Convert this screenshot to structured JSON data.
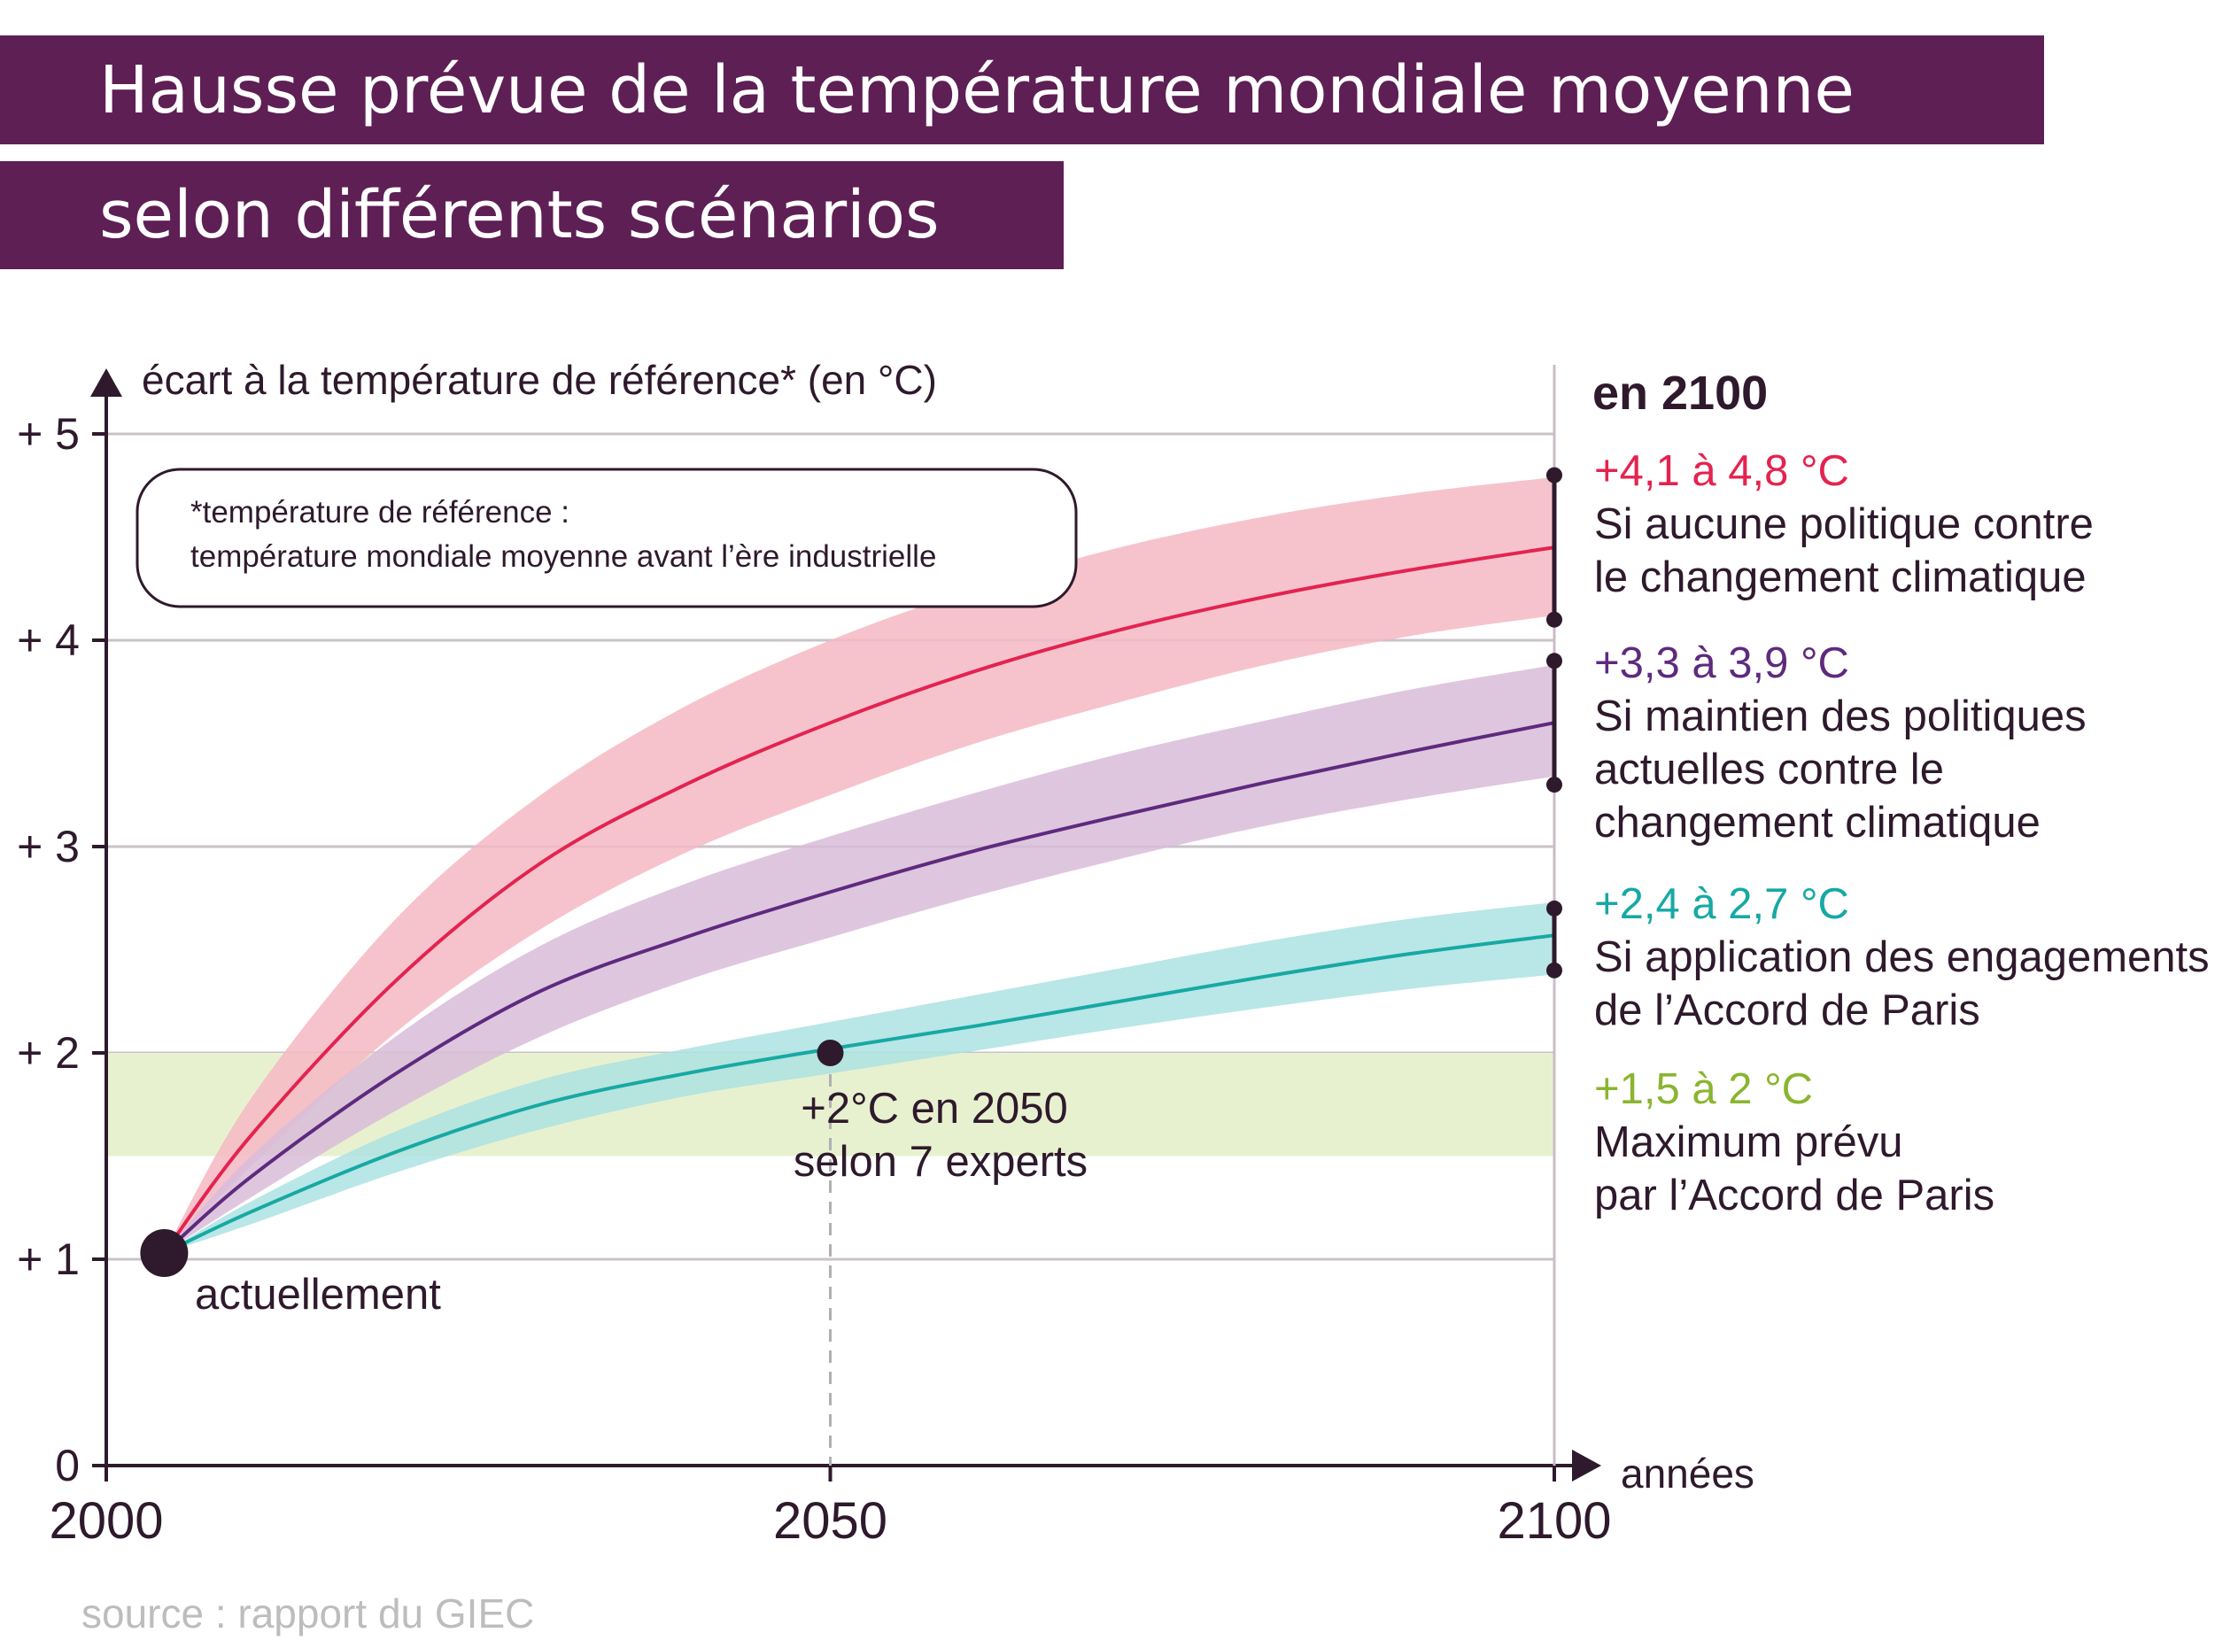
{
  "title": {
    "line1": "Hausse prévue de la température mondiale moyenne",
    "line2": "selon différents scénarios"
  },
  "colors": {
    "title_bg": "#5e1f55",
    "high": "#e4234f",
    "high_band": "#f4b8c4",
    "mid": "#5e2a7e",
    "mid_band": "#d9bcd9",
    "low": "#17a9a3",
    "low_band": "#ade2e2",
    "paris_band": "#e8f1cf",
    "paris_text": "#8ab52f"
  },
  "chart_data": {
    "type": "line",
    "ylabel": "écart à la température de référence* (en °C)",
    "xlabel": "années",
    "xlim": [
      2000,
      2100
    ],
    "ylim": [
      0,
      5
    ],
    "x_ticks": [
      "2000",
      "2050",
      "2100"
    ],
    "y_ticks": [
      "0",
      "+ 1",
      "+ 2",
      "+ 3",
      "+ 4",
      "+ 5"
    ],
    "grid": true,
    "x": [
      2004,
      2010,
      2020,
      2030,
      2040,
      2050,
      2060,
      2070,
      2080,
      2090,
      2100
    ],
    "series": [
      {
        "key": "high",
        "values": [
          1.03,
          1.6,
          2.35,
          2.92,
          3.3,
          3.6,
          3.85,
          4.05,
          4.21,
          4.34,
          4.45
        ],
        "band_low": [
          1.03,
          1.45,
          2.1,
          2.6,
          2.97,
          3.25,
          3.5,
          3.7,
          3.88,
          4.02,
          4.12
        ],
        "band_high": [
          1.03,
          1.78,
          2.65,
          3.25,
          3.68,
          4.0,
          4.25,
          4.45,
          4.6,
          4.71,
          4.79
        ]
      },
      {
        "key": "mid",
        "values": [
          1.03,
          1.4,
          1.9,
          2.3,
          2.56,
          2.78,
          2.98,
          3.15,
          3.31,
          3.46,
          3.6
        ],
        "band_low": [
          1.03,
          1.3,
          1.72,
          2.08,
          2.35,
          2.56,
          2.76,
          2.94,
          3.1,
          3.23,
          3.34
        ],
        "band_high": [
          1.03,
          1.5,
          2.08,
          2.52,
          2.82,
          3.05,
          3.26,
          3.45,
          3.61,
          3.76,
          3.88
        ]
      },
      {
        "key": "low",
        "values": [
          1.03,
          1.23,
          1.52,
          1.75,
          1.9,
          2.02,
          2.13,
          2.25,
          2.37,
          2.48,
          2.57
        ],
        "band_low": [
          1.03,
          1.17,
          1.42,
          1.63,
          1.79,
          1.9,
          2.01,
          2.12,
          2.22,
          2.31,
          2.38
        ],
        "band_high": [
          1.03,
          1.28,
          1.62,
          1.87,
          2.02,
          2.15,
          2.28,
          2.41,
          2.54,
          2.65,
          2.73
        ]
      }
    ],
    "paris_range": [
      1.5,
      2
    ],
    "current_point": {
      "x": 2004,
      "y": 1.03,
      "label": "actuellement"
    },
    "marker_2050": {
      "x": 2050,
      "y": 2,
      "label_line1": "+2°C en 2050",
      "label_line2": "selon 7 experts"
    },
    "end_ranges": [
      {
        "key": "high",
        "low": 4.1,
        "high": 4.8
      },
      {
        "key": "mid",
        "low": 3.3,
        "high": 3.9
      },
      {
        "key": "low",
        "low": 2.4,
        "high": 2.7
      }
    ]
  },
  "note": {
    "line1": "*température  de référence :",
    "line2": "température mondiale moyenne avant l’ère industrielle"
  },
  "right_panel": {
    "heading": "en 2100",
    "high_range": "+4,1 à 4,8 °C",
    "high_line1": "Si aucune politique contre",
    "high_line2": "le changement climatique",
    "mid_range": "+3,3 à 3,9 °C",
    "mid_line1": "Si maintien des politiques",
    "mid_line2": "actuelles contre le",
    "mid_line3": "changement climatique",
    "low_range": "+2,4 à 2,7 °C",
    "low_line1": "Si application des engagements",
    "low_line2": "de l’Accord de Paris",
    "paris_range": "+1,5 à 2 °C",
    "paris_line1": "Maximum prévu",
    "paris_line2": "par l’Accord de Paris"
  },
  "source": "source : rapport du GIEC"
}
